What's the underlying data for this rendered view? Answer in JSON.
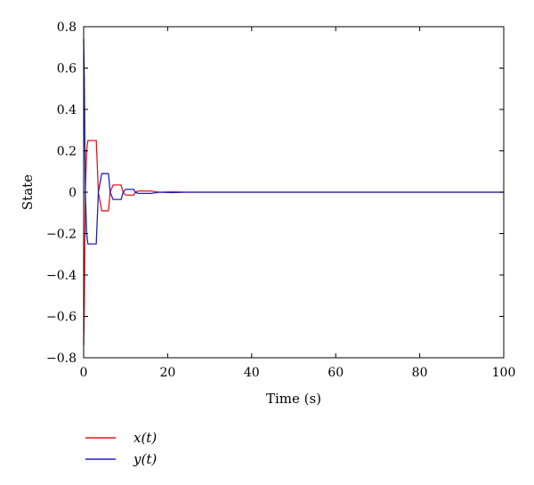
{
  "chart_data": {
    "type": "line",
    "title": "",
    "xlabel": "Time (s)",
    "ylabel": "State",
    "xlim": [
      0,
      100
    ],
    "ylim": [
      -0.8,
      0.8
    ],
    "xticks": [
      0,
      20,
      40,
      60,
      80,
      100
    ],
    "yticks": [
      -0.8,
      -0.6,
      -0.4,
      -0.2,
      0,
      0.2,
      0.4,
      0.6,
      0.8
    ],
    "xtick_labels": [
      "0",
      "20",
      "40",
      "60",
      "80",
      "100"
    ],
    "ytick_labels": [
      "−0.8",
      "−0.6",
      "−0.4",
      "−0.2",
      "0",
      "0.2",
      "0.4",
      "0.6",
      "0.8"
    ],
    "grid": false,
    "legend_position": "below-left",
    "series": [
      {
        "name": "x(t)",
        "color": "#e8141c",
        "x": [
          0,
          0.15,
          0.4,
          0.7,
          1.0,
          3.0,
          3.5,
          4.3,
          5.9,
          6.3,
          7.0,
          8.9,
          9.4,
          10.0,
          11.9,
          12.3,
          13.0,
          16.0,
          18.0,
          21.0,
          25.0,
          30.0,
          100.0
        ],
        "values": [
          -0.74,
          -0.55,
          0.0,
          0.2,
          0.25,
          0.25,
          0.0,
          -0.09,
          -0.09,
          0.0,
          0.035,
          0.035,
          0.0,
          -0.014,
          -0.014,
          0.0,
          0.006,
          0.006,
          0.0,
          0.002,
          0.0,
          0.0,
          0.0
        ]
      },
      {
        "name": "y(t)",
        "color": "#2020b8",
        "x": [
          0,
          0.15,
          0.4,
          0.7,
          1.0,
          3.0,
          3.5,
          4.3,
          5.9,
          6.3,
          7.0,
          8.9,
          9.4,
          10.0,
          11.9,
          12.3,
          13.0,
          16.0,
          18.0,
          21.0,
          25.0,
          30.0,
          100.0
        ],
        "values": [
          0.74,
          0.55,
          0.0,
          -0.2,
          -0.25,
          -0.25,
          0.0,
          0.09,
          0.09,
          0.0,
          -0.035,
          -0.035,
          0.0,
          0.014,
          0.014,
          0.0,
          -0.006,
          -0.006,
          0.0,
          -0.002,
          0.0,
          0.0,
          0.0
        ]
      }
    ]
  }
}
